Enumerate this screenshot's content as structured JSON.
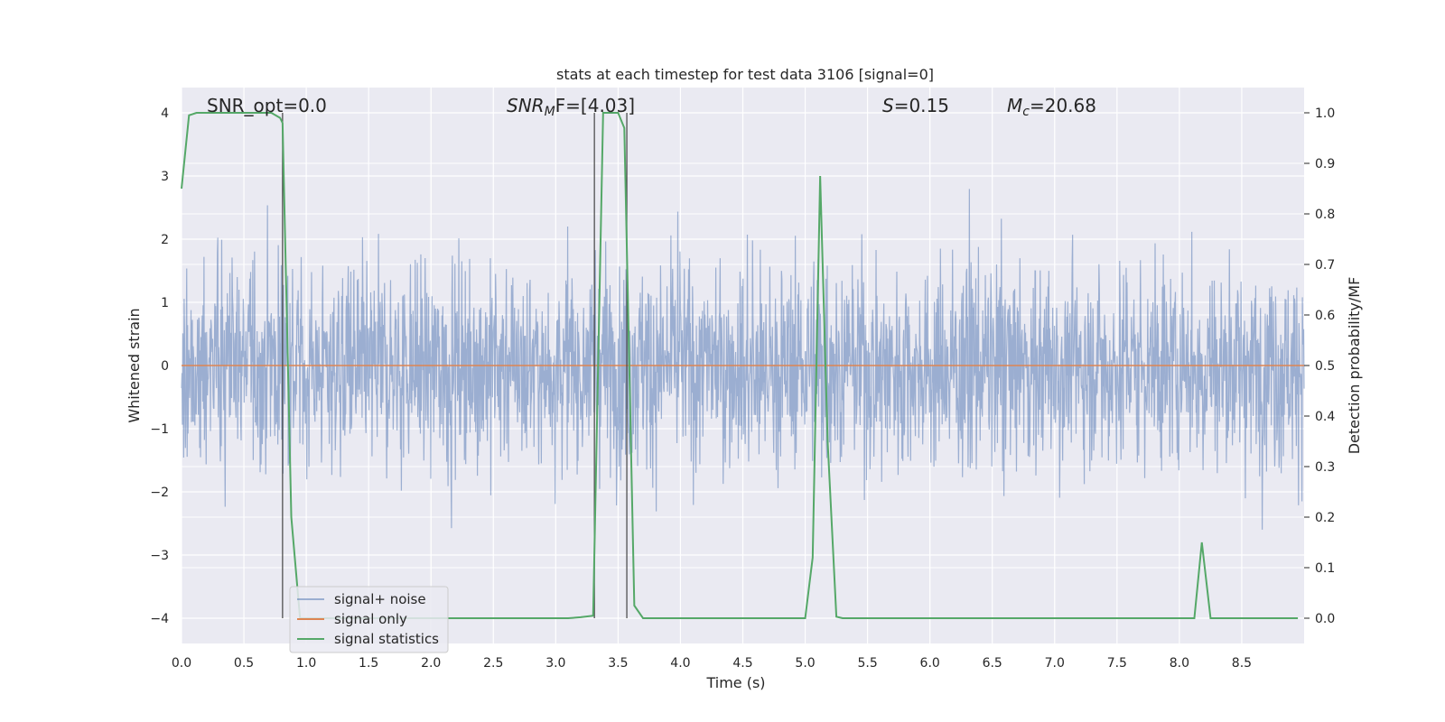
{
  "chart_data": {
    "type": "line",
    "title": "stats at each timestep for test data 3106 [signal=0]",
    "xlabel": "Time (s)",
    "ylabel_left": "Whitened strain",
    "ylabel_right": "Detection probability/MF",
    "xlim": [
      0,
      9.0
    ],
    "ylim_left": [
      -4.4,
      4.4
    ],
    "ylim_right": [
      -0.05,
      1.05
    ],
    "x_ticks": [
      "0.0",
      "0.5",
      "1.0",
      "1.5",
      "2.0",
      "2.5",
      "3.0",
      "3.5",
      "4.0",
      "4.5",
      "5.0",
      "5.5",
      "6.0",
      "6.5",
      "7.0",
      "7.5",
      "8.0",
      "8.5"
    ],
    "y_ticks_left": [
      "−4",
      "−3",
      "−2",
      "−1",
      "0",
      "1",
      "2",
      "3",
      "4"
    ],
    "y_ticks_right": [
      "0.0",
      "0.1",
      "0.2",
      "0.3",
      "0.4",
      "0.5",
      "0.6",
      "0.7",
      "0.8",
      "0.9",
      "1.0"
    ],
    "grid": true,
    "legend_position": "lower-left",
    "annotations": {
      "snr_opt": "SNR_opt=0.0",
      "snr_mf_name": "SNR",
      "snr_mf_sub": "M",
      "snr_mf_rest": "F=[4.03]",
      "s_name": "S",
      "s_rest": "=0.15",
      "mc_name": "M",
      "mc_sub": "c",
      "mc_rest": "=20.68"
    },
    "vertical_lines": [
      0.81,
      3.31,
      3.57
    ],
    "series": [
      {
        "name": "signal+ noise",
        "color": "#4c72b0",
        "axis": "left",
        "description": "dense whitened noise, envelope approximately within ±2.5 with peaks near ±4",
        "points": [
          [
            0.0,
            0.0
          ],
          [
            9.0,
            0.0
          ]
        ]
      },
      {
        "name": "signal only",
        "color": "#dd8452",
        "axis": "left",
        "points": [
          [
            0.0,
            0.0
          ],
          [
            9.0,
            0.0
          ]
        ]
      },
      {
        "name": "signal statistics",
        "color": "#55a868",
        "axis": "right",
        "points": [
          [
            0.0,
            0.85
          ],
          [
            0.06,
            0.995
          ],
          [
            0.12,
            1.0
          ],
          [
            0.5,
            1.0
          ],
          [
            0.72,
            1.0
          ],
          [
            0.79,
            0.99
          ],
          [
            0.81,
            0.98
          ],
          [
            0.88,
            0.2
          ],
          [
            0.95,
            0.0
          ],
          [
            3.1,
            0.0
          ],
          [
            3.2,
            0.002
          ],
          [
            3.3,
            0.005
          ],
          [
            3.38,
            1.0
          ],
          [
            3.5,
            1.0
          ],
          [
            3.55,
            0.97
          ],
          [
            3.63,
            0.025
          ],
          [
            3.7,
            0.0
          ],
          [
            5.0,
            0.0
          ],
          [
            5.06,
            0.12
          ],
          [
            5.12,
            0.875
          ],
          [
            5.18,
            0.35
          ],
          [
            5.25,
            0.003
          ],
          [
            5.3,
            0.0
          ],
          [
            8.12,
            0.0
          ],
          [
            8.18,
            0.15
          ],
          [
            8.25,
            0.0
          ],
          [
            8.95,
            0.0
          ]
        ]
      }
    ]
  }
}
